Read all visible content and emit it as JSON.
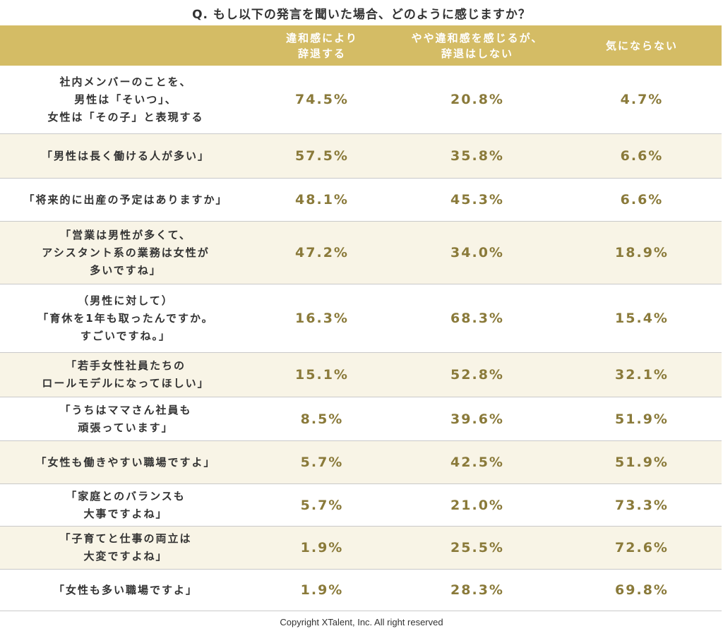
{
  "title": "Q. もし以下の発言を聞いた場合、どのように感じますか？",
  "footer": "Copyright XTalent, Inc. All right reserved",
  "colors": {
    "header_bg": "#d4bc65",
    "row_shade": "#f8f4e6",
    "value_text": "#8a7a3a"
  },
  "chart_data": {
    "type": "table",
    "title": "Q. もし以下の発言を聞いた場合、どのように感じますか？",
    "columns": [
      "違和感により\n辞退する",
      "やや違和感を感じるが、\n辞退はしない",
      "気にならない"
    ],
    "rows": [
      {
        "statement": "社内メンバーのことを、\n男性は「そいつ」、\n女性は「その子」と表現する",
        "values": [
          "74.5%",
          "20.8%",
          "4.7%"
        ]
      },
      {
        "statement": "「男性は長く働ける人が多い」",
        "values": [
          "57.5%",
          "35.8%",
          "6.6%"
        ]
      },
      {
        "statement": "「将来的に出産の予定はありますか」",
        "values": [
          "48.1%",
          "45.3%",
          "6.6%"
        ]
      },
      {
        "statement": "「営業は男性が多くて、\nアシスタント系の業務は女性が\n多いですね」",
        "values": [
          "47.2%",
          "34.0%",
          "18.9%"
        ]
      },
      {
        "statement": "（男性に対して）\n「育休を1年も取ったんですか。\nすごいですね。」",
        "values": [
          "16.3%",
          "68.3%",
          "15.4%"
        ]
      },
      {
        "statement": "「若手女性社員たちの\nロールモデルになってほしい」",
        "values": [
          "15.1%",
          "52.8%",
          "32.1%"
        ]
      },
      {
        "statement": "「うちはママさん社員も\n頑張っています」",
        "values": [
          "8.5%",
          "39.6%",
          "51.9%"
        ]
      },
      {
        "statement": "「女性も働きやすい職場ですよ」",
        "values": [
          "5.7%",
          "42.5%",
          "51.9%"
        ]
      },
      {
        "statement": "「家庭とのバランスも\n大事ですよね」",
        "values": [
          "5.7%",
          "21.0%",
          "73.3%"
        ]
      },
      {
        "statement": "「子育てと仕事の両立は\n大変ですよね」",
        "values": [
          "1.9%",
          "25.5%",
          "72.6%"
        ]
      },
      {
        "statement": "「女性も多い職場ですよ」",
        "values": [
          "1.9%",
          "28.3%",
          "69.8%"
        ]
      }
    ]
  }
}
